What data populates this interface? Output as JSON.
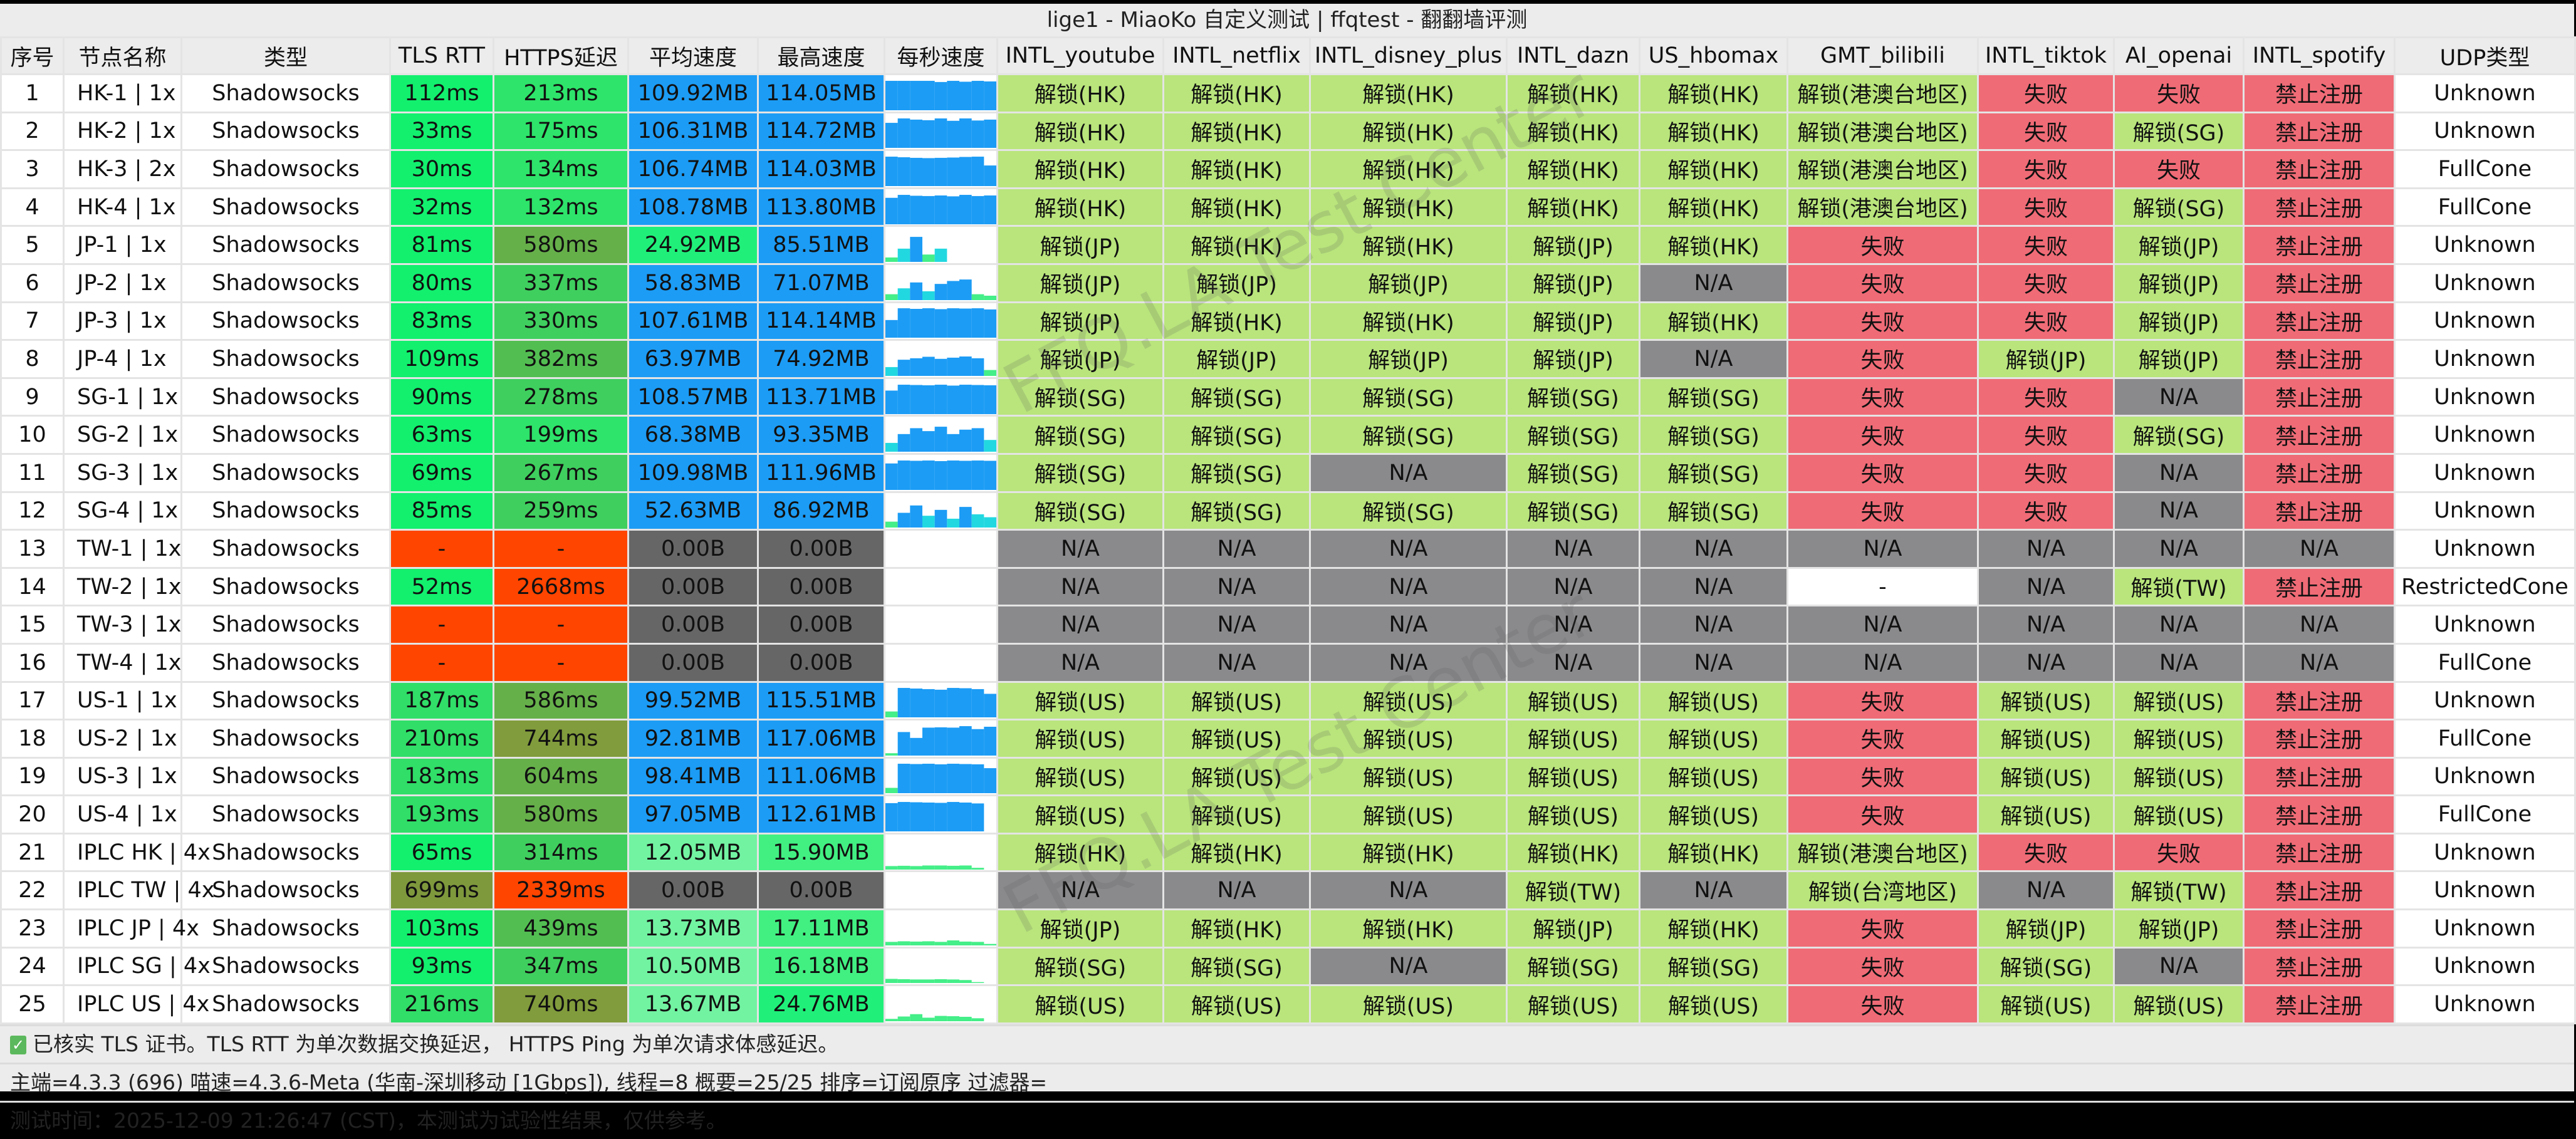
{
  "window_title": "lige1 - MiaoKo 自定义测试 | ffqtest - 翻翻墙评测",
  "watermark": "FFQ.LA Test Center",
  "colors": {
    "unlock": "#b9e57c",
    "fail": "#ef6b76",
    "na": "#8a898c",
    "blank": "#ffffff",
    "bad": "#ff4500",
    "zero": "#666666",
    "fast": "#1c9cf5"
  },
  "columns": [
    "序号",
    "节点名称",
    "类型",
    "TLS RTT",
    "HTTPS延迟",
    "平均速度",
    "最高速度",
    "每秒速度",
    "INTL_youtube",
    "INTL_netflix",
    "INTL_disney_plus",
    "INTL_dazn",
    "US_hbomax",
    "GMT_bilibili",
    "INTL_tiktok",
    "AI_openai",
    "INTL_spotify",
    "UDP类型"
  ],
  "rows": [
    {
      "no": "1",
      "name": "HK-1 | 1x",
      "type": "Shadowsocks",
      "tls": "112ms",
      "https": "213ms",
      "avg": "109.92MB",
      "max": "114.05MB",
      "per_second": [
        100,
        100,
        100,
        100,
        96,
        100,
        97,
        100,
        98
      ],
      "unlock": [
        "解锁(HK)",
        "解锁(HK)",
        "解锁(HK)",
        "解锁(HK)",
        "解锁(HK)",
        "解锁(港澳台地区)",
        "失败",
        "失败",
        "禁止注册"
      ],
      "udp": "Unknown"
    },
    {
      "no": "2",
      "name": "HK-2 | 1x",
      "type": "Shadowsocks",
      "tls": "33ms",
      "https": "175ms",
      "avg": "106.31MB",
      "max": "114.72MB",
      "per_second": [
        85,
        100,
        96,
        94,
        100,
        92,
        100,
        93,
        96
      ],
      "unlock": [
        "解锁(HK)",
        "解锁(HK)",
        "解锁(HK)",
        "解锁(HK)",
        "解锁(HK)",
        "解锁(港澳台地区)",
        "失败",
        "解锁(SG)",
        "禁止注册"
      ],
      "udp": "Unknown"
    },
    {
      "no": "3",
      "name": "HK-3 | 2x",
      "type": "Shadowsocks",
      "tls": "30ms",
      "https": "134ms",
      "avg": "106.74MB",
      "max": "114.03MB",
      "per_second": [
        100,
        98,
        96,
        95,
        96,
        97,
        99,
        100,
        70
      ],
      "unlock": [
        "解锁(HK)",
        "解锁(HK)",
        "解锁(HK)",
        "解锁(HK)",
        "解锁(HK)",
        "解锁(港澳台地区)",
        "失败",
        "失败",
        "禁止注册"
      ],
      "udp": "FullCone"
    },
    {
      "no": "4",
      "name": "HK-4 | 1x",
      "type": "Shadowsocks",
      "tls": "32ms",
      "https": "132ms",
      "avg": "108.78MB",
      "max": "113.80MB",
      "per_second": [
        90,
        100,
        97,
        96,
        98,
        95,
        100,
        96,
        98
      ],
      "unlock": [
        "解锁(HK)",
        "解锁(HK)",
        "解锁(HK)",
        "解锁(HK)",
        "解锁(HK)",
        "解锁(港澳台地区)",
        "失败",
        "解锁(SG)",
        "禁止注册"
      ],
      "udp": "FullCone"
    },
    {
      "no": "5",
      "name": "JP-1 | 1x",
      "type": "Shadowsocks",
      "tls": "81ms",
      "https": "580ms",
      "avg": "24.92MB",
      "max": "85.51MB",
      "per_second": [
        15,
        45,
        85,
        25,
        45,
        0,
        0,
        0,
        0
      ],
      "unlock": [
        "解锁(JP)",
        "解锁(HK)",
        "解锁(HK)",
        "解锁(JP)",
        "解锁(HK)",
        "失败",
        "失败",
        "解锁(JP)",
        "禁止注册"
      ],
      "udp": "Unknown"
    },
    {
      "no": "6",
      "name": "JP-2 | 1x",
      "type": "Shadowsocks",
      "tls": "80ms",
      "https": "337ms",
      "avg": "58.83MB",
      "max": "71.07MB",
      "per_second": [
        20,
        40,
        60,
        30,
        55,
        65,
        70,
        20,
        15
      ],
      "unlock": [
        "解锁(JP)",
        "解锁(JP)",
        "解锁(JP)",
        "解锁(JP)",
        "N/A",
        "失败",
        "失败",
        "解锁(JP)",
        "禁止注册"
      ],
      "udp": "Unknown"
    },
    {
      "no": "7",
      "name": "JP-3 | 1x",
      "type": "Shadowsocks",
      "tls": "83ms",
      "https": "330ms",
      "avg": "107.61MB",
      "max": "114.14MB",
      "per_second": [
        60,
        100,
        98,
        100,
        97,
        100,
        99,
        100,
        96
      ],
      "unlock": [
        "解锁(JP)",
        "解锁(HK)",
        "解锁(HK)",
        "解锁(JP)",
        "解锁(HK)",
        "失败",
        "失败",
        "解锁(JP)",
        "禁止注册"
      ],
      "udp": "Unknown"
    },
    {
      "no": "8",
      "name": "JP-4 | 1x",
      "type": "Shadowsocks",
      "tls": "109ms",
      "https": "382ms",
      "avg": "63.97MB",
      "max": "74.92MB",
      "per_second": [
        30,
        55,
        60,
        65,
        58,
        62,
        66,
        60,
        20
      ],
      "unlock": [
        "解锁(JP)",
        "解锁(JP)",
        "解锁(JP)",
        "解锁(JP)",
        "N/A",
        "失败",
        "解锁(JP)",
        "解锁(JP)",
        "禁止注册"
      ],
      "udp": "Unknown"
    },
    {
      "no": "9",
      "name": "SG-1 | 1x",
      "type": "Shadowsocks",
      "tls": "90ms",
      "https": "278ms",
      "avg": "108.57MB",
      "max": "113.71MB",
      "per_second": [
        80,
        100,
        99,
        98,
        100,
        97,
        100,
        99,
        98
      ],
      "unlock": [
        "解锁(SG)",
        "解锁(SG)",
        "解锁(SG)",
        "解锁(SG)",
        "解锁(SG)",
        "失败",
        "失败",
        "N/A",
        "禁止注册"
      ],
      "udp": "Unknown"
    },
    {
      "no": "10",
      "name": "SG-2 | 1x",
      "type": "Shadowsocks",
      "tls": "63ms",
      "https": "199ms",
      "avg": "68.38MB",
      "max": "93.35MB",
      "per_second": [
        30,
        60,
        80,
        70,
        85,
        60,
        75,
        80,
        40
      ],
      "unlock": [
        "解锁(SG)",
        "解锁(SG)",
        "解锁(SG)",
        "解锁(SG)",
        "解锁(SG)",
        "失败",
        "失败",
        "解锁(SG)",
        "禁止注册"
      ],
      "udp": "Unknown"
    },
    {
      "no": "11",
      "name": "SG-3 | 1x",
      "type": "Shadowsocks",
      "tls": "69ms",
      "https": "267ms",
      "avg": "109.98MB",
      "max": "111.96MB",
      "per_second": [
        90,
        100,
        99,
        100,
        98,
        100,
        99,
        100,
        99
      ],
      "unlock": [
        "解锁(SG)",
        "解锁(SG)",
        "N/A",
        "解锁(SG)",
        "解锁(SG)",
        "失败",
        "失败",
        "N/A",
        "禁止注册"
      ],
      "udp": "Unknown"
    },
    {
      "no": "12",
      "name": "SG-4 | 1x",
      "type": "Shadowsocks",
      "tls": "85ms",
      "https": "259ms",
      "avg": "52.63MB",
      "max": "86.92MB",
      "per_second": [
        20,
        50,
        75,
        40,
        60,
        30,
        70,
        45,
        35
      ],
      "unlock": [
        "解锁(SG)",
        "解锁(SG)",
        "解锁(SG)",
        "解锁(SG)",
        "解锁(SG)",
        "失败",
        "失败",
        "N/A",
        "禁止注册"
      ],
      "udp": "Unknown"
    },
    {
      "no": "13",
      "name": "TW-1 | 1x",
      "type": "Shadowsocks",
      "tls": "-",
      "https": "-",
      "avg": "0.00B",
      "max": "0.00B",
      "per_second": [],
      "unlock": [
        "N/A",
        "N/A",
        "N/A",
        "N/A",
        "N/A",
        "N/A",
        "N/A",
        "N/A",
        "N/A"
      ],
      "udp": "Unknown"
    },
    {
      "no": "14",
      "name": "TW-2 | 1x",
      "type": "Shadowsocks",
      "tls": "52ms",
      "https": "2668ms",
      "avg": "0.00B",
      "max": "0.00B",
      "per_second": [],
      "unlock": [
        "N/A",
        "N/A",
        "N/A",
        "N/A",
        "N/A",
        "-",
        "N/A",
        "解锁(TW)",
        "禁止注册"
      ],
      "udp": "RestrictedCone"
    },
    {
      "no": "15",
      "name": "TW-3 | 1x",
      "type": "Shadowsocks",
      "tls": "-",
      "https": "-",
      "avg": "0.00B",
      "max": "0.00B",
      "per_second": [],
      "unlock": [
        "N/A",
        "N/A",
        "N/A",
        "N/A",
        "N/A",
        "N/A",
        "N/A",
        "N/A",
        "N/A"
      ],
      "udp": "Unknown"
    },
    {
      "no": "16",
      "name": "TW-4 | 1x",
      "type": "Shadowsocks",
      "tls": "-",
      "https": "-",
      "avg": "0.00B",
      "max": "0.00B",
      "per_second": [],
      "unlock": [
        "N/A",
        "N/A",
        "N/A",
        "N/A",
        "N/A",
        "N/A",
        "N/A",
        "N/A",
        "N/A"
      ],
      "udp": "FullCone"
    },
    {
      "no": "17",
      "name": "US-1 | 1x",
      "type": "Shadowsocks",
      "tls": "187ms",
      "https": "586ms",
      "avg": "99.52MB",
      "max": "115.51MB",
      "per_second": [
        20,
        100,
        98,
        96,
        94,
        100,
        99,
        96,
        80
      ],
      "unlock": [
        "解锁(US)",
        "解锁(US)",
        "解锁(US)",
        "解锁(US)",
        "解锁(US)",
        "失败",
        "解锁(US)",
        "解锁(US)",
        "禁止注册"
      ],
      "udp": "Unknown"
    },
    {
      "no": "18",
      "name": "US-2 | 1x",
      "type": "Shadowsocks",
      "tls": "210ms",
      "https": "744ms",
      "avg": "92.81MB",
      "max": "117.06MB",
      "per_second": [
        8,
        80,
        60,
        95,
        96,
        95,
        100,
        90,
        98
      ],
      "unlock": [
        "解锁(US)",
        "解锁(US)",
        "解锁(US)",
        "解锁(US)",
        "解锁(US)",
        "失败",
        "解锁(US)",
        "解锁(US)",
        "禁止注册"
      ],
      "udp": "FullCone"
    },
    {
      "no": "19",
      "name": "US-3 | 1x",
      "type": "Shadowsocks",
      "tls": "183ms",
      "https": "604ms",
      "avg": "98.41MB",
      "max": "111.06MB",
      "per_second": [
        18,
        100,
        99,
        100,
        98,
        100,
        99,
        98,
        85
      ],
      "unlock": [
        "解锁(US)",
        "解锁(US)",
        "解锁(US)",
        "解锁(US)",
        "解锁(US)",
        "失败",
        "解锁(US)",
        "解锁(US)",
        "禁止注册"
      ],
      "udp": "Unknown"
    },
    {
      "no": "20",
      "name": "US-4 | 1x",
      "type": "Shadowsocks",
      "tls": "193ms",
      "https": "580ms",
      "avg": "97.05MB",
      "max": "112.61MB",
      "per_second": [
        96,
        100,
        99,
        98,
        97,
        100,
        98,
        95,
        0
      ],
      "unlock": [
        "解锁(US)",
        "解锁(US)",
        "解锁(US)",
        "解锁(US)",
        "解锁(US)",
        "失败",
        "解锁(US)",
        "解锁(US)",
        "禁止注册"
      ],
      "udp": "FullCone"
    },
    {
      "no": "21",
      "name": "IPLC HK | 4x",
      "type": "Shadowsocks",
      "tls": "65ms",
      "https": "314ms",
      "avg": "12.05MB",
      "max": "15.90MB",
      "per_second": [
        12,
        13,
        12,
        14,
        14,
        13,
        14,
        6,
        0
      ],
      "unlock": [
        "解锁(HK)",
        "解锁(HK)",
        "解锁(HK)",
        "解锁(HK)",
        "解锁(HK)",
        "解锁(港澳台地区)",
        "失败",
        "失败",
        "禁止注册"
      ],
      "udp": "Unknown"
    },
    {
      "no": "22",
      "name": "IPLC TW | 4x",
      "type": "Shadowsocks",
      "tls": "699ms",
      "https": "2339ms",
      "avg": "0.00B",
      "max": "0.00B",
      "per_second": [],
      "unlock": [
        "N/A",
        "N/A",
        "N/A",
        "解锁(TW)",
        "N/A",
        "解锁(台湾地区)",
        "N/A",
        "解锁(TW)",
        "禁止注册"
      ],
      "udp": "Unknown"
    },
    {
      "no": "23",
      "name": "IPLC JP | 4x",
      "type": "Shadowsocks",
      "tls": "103ms",
      "https": "439ms",
      "avg": "13.73MB",
      "max": "17.11MB",
      "per_second": [
        12,
        14,
        13,
        14,
        12,
        17,
        13,
        12,
        5
      ],
      "unlock": [
        "解锁(JP)",
        "解锁(HK)",
        "解锁(HK)",
        "解锁(JP)",
        "解锁(HK)",
        "失败",
        "解锁(JP)",
        "解锁(JP)",
        "禁止注册"
      ],
      "udp": "Unknown"
    },
    {
      "no": "24",
      "name": "IPLC SG | 4x",
      "type": "Shadowsocks",
      "tls": "93ms",
      "https": "347ms",
      "avg": "10.50MB",
      "max": "16.18MB",
      "per_second": [
        14,
        13,
        12,
        12,
        13,
        12,
        10,
        3,
        0
      ],
      "unlock": [
        "解锁(SG)",
        "解锁(SG)",
        "N/A",
        "解锁(SG)",
        "解锁(SG)",
        "失败",
        "解锁(SG)",
        "N/A",
        "禁止注册"
      ],
      "udp": "Unknown"
    },
    {
      "no": "25",
      "name": "IPLC US | 4x",
      "type": "Shadowsocks",
      "tls": "216ms",
      "https": "740ms",
      "avg": "13.67MB",
      "max": "24.76MB",
      "per_second": [
        8,
        16,
        24,
        12,
        18,
        17,
        15,
        10,
        0
      ],
      "unlock": [
        "解锁(US)",
        "解锁(US)",
        "解锁(US)",
        "解锁(US)",
        "解锁(US)",
        "失败",
        "解锁(US)",
        "解锁(US)",
        "禁止注册"
      ],
      "udp": "Unknown"
    }
  ],
  "footer": {
    "tls_note_icon": "checkbox-checked-icon",
    "tls_note": "已核实 TLS 证书。TLS RTT 为单次数据交换延迟， HTTPS Ping 为单次请求体感延迟。",
    "info": "主端=4.3.3 (696) 喵速=4.3.6-Meta (华南-深圳移动 [1Gbps]), 线程=8 概要=25/25 排序=订阅原序 过滤器=",
    "time": "测试时间：2025-12-09 21:26:47 (CST)，本测试为试验性结果，仅供参考。"
  }
}
